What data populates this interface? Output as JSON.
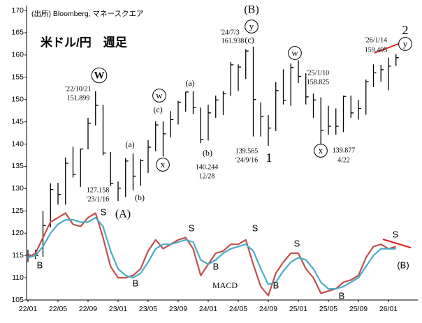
{
  "chart_data": {
    "type": "ohlc",
    "title": "米ドル/円　週足",
    "source": "(出所) Bloomberg, マネースクエア",
    "categories": [
      "22/01",
      null,
      null,
      null,
      "22/05",
      null,
      null,
      null,
      "22/09",
      null,
      null,
      null,
      "23/01",
      null,
      null,
      null,
      "23/05",
      null,
      null,
      null,
      "23/09",
      null,
      null,
      null,
      "24/01",
      null,
      null,
      null,
      "24/05",
      null,
      null,
      null,
      "24/09",
      null,
      null,
      null,
      "25/01",
      null,
      null,
      null,
      "25/05",
      null,
      null,
      null,
      "25/09",
      null,
      null,
      null,
      "26/01",
      null
    ],
    "high": [
      116.3,
      116.3,
      125.0,
      131.2,
      131.3,
      137.0,
      139.4,
      139.0,
      145.9,
      151.9,
      148.8,
      138.2,
      131.6,
      136.9,
      137.9,
      136.6,
      140.9,
      145.1,
      145.1,
      147.4,
      149.7,
      151.7,
      151.9,
      148.2,
      148.8,
      150.9,
      151.9,
      158.4,
      157.9,
      161.3,
      161.9,
      149.4,
      146.5,
      153.9,
      156.8,
      158.1,
      158.8,
      155.9,
      151.3,
      150.5,
      148.6,
      148.0,
      150.9,
      150.9,
      149.9,
      154.5,
      157.9,
      157.8,
      159.4,
      160.2
    ],
    "low": [
      113.5,
      114.2,
      114.7,
      121.3,
      126.4,
      126.4,
      132.5,
      130.4,
      138.8,
      144.2,
      137.5,
      130.6,
      127.2,
      128.1,
      129.6,
      130.6,
      133.5,
      138.4,
      137.2,
      141.5,
      144.4,
      147.3,
      146.7,
      140.2,
      140.8,
      145.9,
      146.5,
      150.8,
      151.9,
      154.6,
      141.7,
      141.7,
      139.6,
      142.9,
      148.9,
      148.6,
      153.7,
      148.9,
      145.9,
      139.9,
      142.1,
      142.1,
      142.7,
      145.9,
      145.5,
      146.6,
      152.8,
      154.0,
      152.1,
      157.5
    ],
    "close": [
      115.1,
      115.0,
      121.7,
      129.8,
      128.7,
      135.7,
      133.2,
      138.9,
      144.7,
      148.7,
      138.0,
      131.1,
      130.1,
      136.2,
      132.8,
      136.3,
      139.3,
      144.3,
      142.3,
      145.5,
      149.4,
      151.7,
      148.2,
      141.0,
      147.0,
      149.9,
      151.3,
      157.8,
      157.3,
      160.9,
      150.0,
      146.2,
      143.6,
      152.0,
      149.8,
      157.2,
      155.2,
      150.6,
      149.9,
      143.1,
      144.0,
      144.0,
      150.7,
      147.0,
      148.0,
      154.0,
      156.0,
      156.7,
      157.5,
      159.4
    ],
    "bar_color": "#000000",
    "lines": [
      {
        "color": "#c0504d",
        "values": [
          114.5,
          115.5,
          119,
          122.5,
          123.5,
          124.5,
          122,
          121.5,
          123.5,
          124.5,
          119,
          112.5,
          110,
          110,
          110.5,
          112,
          116,
          118.5,
          116.5,
          117.5,
          118.5,
          119,
          116.5,
          110.5,
          113,
          115.5,
          116,
          117.5,
          117.5,
          118.5,
          113,
          108,
          106,
          111,
          113.5,
          115.5,
          115.5,
          112,
          110,
          106.5,
          107,
          107.5,
          109,
          109.5,
          110.5,
          114.5,
          117,
          117.5,
          116.5,
          117
        ]
      },
      {
        "color": "#4bacc6",
        "values": [
          114.5,
          115,
          117,
          120,
          122,
          123,
          123,
          122.5,
          122.5,
          123.5,
          121.5,
          116,
          112,
          110.5,
          110,
          111,
          113.5,
          116.5,
          117.5,
          117.5,
          118,
          118.5,
          118,
          114,
          113,
          114,
          115.5,
          116.5,
          117,
          117.5,
          116,
          112,
          108.5,
          109,
          111.5,
          113.5,
          114.5,
          114,
          112,
          109,
          107.5,
          107.5,
          108,
          109,
          110,
          112.5,
          115,
          116.5,
          116.5,
          116.5
        ]
      }
    ],
    "ylim": [
      105,
      170
    ],
    "yticks": [
      105,
      110,
      115,
      120,
      125,
      130,
      135,
      140,
      145,
      150,
      155,
      160,
      165,
      170
    ],
    "grid": false,
    "annotations": [
      {
        "text": "(B)"
      },
      {
        "text": "y",
        "circled": true
      },
      {
        "text": "'24/7/3"
      },
      {
        "text": "161.938"
      },
      {
        "text": "(c)"
      },
      {
        "text": "W",
        "circled": true
      },
      {
        "text": "'22/10/21"
      },
      {
        "text": "151.899"
      },
      {
        "text": "w",
        "circled": true
      },
      {
        "text": "(c)"
      },
      {
        "text": "(a)"
      },
      {
        "text": "(a)"
      },
      {
        "text": "x",
        "circled": true
      },
      {
        "text": "(b)"
      },
      {
        "text": "(b)"
      },
      {
        "text": "140.244"
      },
      {
        "text": "12/28"
      },
      {
        "text": "127.158"
      },
      {
        "text": "'23/1/16"
      },
      {
        "text": "(A)"
      },
      {
        "text": "139.565"
      },
      {
        "text": "'24/9/16"
      },
      {
        "text": "1"
      },
      {
        "text": "w",
        "circled": true
      },
      {
        "text": "'25/1/10"
      },
      {
        "text": "158.825"
      },
      {
        "text": "x",
        "circled": true
      },
      {
        "text": "139.877"
      },
      {
        "text": "4/22"
      },
      {
        "text": "'26/1/14"
      },
      {
        "text": "159.405"
      },
      {
        "text": "2"
      },
      {
        "text": "y",
        "circled": true
      },
      {
        "text": "S"
      },
      {
        "text": "S"
      },
      {
        "text": "S"
      },
      {
        "text": "S"
      },
      {
        "text": "S"
      },
      {
        "text": "B"
      },
      {
        "text": "B"
      },
      {
        "text": "B"
      },
      {
        "text": "B"
      },
      {
        "text": "B"
      },
      {
        "text": "(B)"
      },
      {
        "text": "MACD"
      }
    ]
  }
}
